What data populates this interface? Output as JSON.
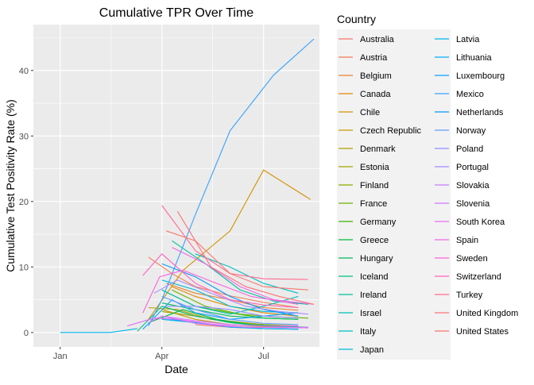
{
  "chart_data": {
    "type": "line",
    "title": "Cumulative TPR Over Time",
    "xlabel": "Date",
    "ylabel": "Cumulative Test Positivity Rate (%)",
    "x_ticks": [
      "Jan",
      "Apr",
      "Jul"
    ],
    "x_tick_dates": [
      "2020-01-01",
      "2020-04-01",
      "2020-07-01"
    ],
    "xlim": [
      "2019-12-08",
      "2020-08-20"
    ],
    "y_ticks": [
      0,
      10,
      20,
      30,
      40
    ],
    "ylim": [
      -2.2,
      47
    ],
    "grid": true,
    "legend": {
      "title": "Country",
      "position": "right",
      "columns": 2
    },
    "series": [
      {
        "name": "Australia",
        "color": "#F8766D",
        "points": [
          [
            "2020-05-01",
            1.2
          ],
          [
            "2020-06-01",
            0.8
          ],
          [
            "2020-07-01",
            0.6
          ],
          [
            "2020-08-01",
            0.5
          ]
        ]
      },
      {
        "name": "Austria",
        "color": "#F27D53",
        "points": [
          [
            "2020-03-20",
            11.5
          ],
          [
            "2020-04-10",
            9.0
          ],
          [
            "2020-05-01",
            7.0
          ],
          [
            "2020-06-01",
            5.6
          ],
          [
            "2020-07-01",
            4.6
          ],
          [
            "2020-08-01",
            3.8
          ]
        ]
      },
      {
        "name": "Belgium",
        "color": "#EA8331",
        "points": [
          [
            "2020-04-05",
            7.5
          ],
          [
            "2020-05-01",
            6.0
          ],
          [
            "2020-06-01",
            5.0
          ],
          [
            "2020-07-01",
            3.8
          ],
          [
            "2020-08-01",
            3.4
          ]
        ]
      },
      {
        "name": "Canada",
        "color": "#E38900",
        "points": [
          [
            "2020-04-10",
            7.0
          ],
          [
            "2020-05-01",
            5.5
          ],
          [
            "2020-06-01",
            4.0
          ],
          [
            "2020-07-01",
            3.0
          ],
          [
            "2020-08-01",
            2.5
          ]
        ]
      },
      {
        "name": "Chile",
        "color": "#D39200",
        "points": [
          [
            "2020-03-20",
            2.0
          ],
          [
            "2020-04-20",
            9.5
          ],
          [
            "2020-06-01",
            15.5
          ],
          [
            "2020-07-01",
            24.8
          ],
          [
            "2020-08-12",
            20.3
          ]
        ]
      },
      {
        "name": "Czech Republic",
        "color": "#C49A00",
        "points": [
          [
            "2020-04-01",
            3.5
          ],
          [
            "2020-05-01",
            2.0
          ],
          [
            "2020-06-01",
            1.2
          ],
          [
            "2020-07-01",
            0.9
          ],
          [
            "2020-08-01",
            0.8
          ]
        ]
      },
      {
        "name": "Denmark",
        "color": "#B3A000",
        "points": [
          [
            "2020-03-20",
            3.8
          ],
          [
            "2020-04-15",
            3.5
          ],
          [
            "2020-05-15",
            2.0
          ],
          [
            "2020-07-01",
            1.2
          ],
          [
            "2020-08-01",
            1.0
          ]
        ]
      },
      {
        "name": "Estonia",
        "color": "#A0A600",
        "points": [
          [
            "2020-04-01",
            3.2
          ],
          [
            "2020-05-01",
            2.5
          ],
          [
            "2020-06-01",
            1.6
          ],
          [
            "2020-07-01",
            1.2
          ]
        ]
      },
      {
        "name": "Finland",
        "color": "#89AC00",
        "points": [
          [
            "2020-04-01",
            4.0
          ],
          [
            "2020-05-01",
            2.5
          ],
          [
            "2020-06-01",
            1.6
          ],
          [
            "2020-07-01",
            1.0
          ],
          [
            "2020-08-01",
            0.8
          ]
        ]
      },
      {
        "name": "France",
        "color": "#6BB100",
        "points": [
          [
            "2020-04-10",
            6.5
          ],
          [
            "2020-05-10",
            4.0
          ],
          [
            "2020-06-10",
            2.8
          ],
          [
            "2020-07-10",
            2.4
          ],
          [
            "2020-08-10",
            2.2
          ]
        ]
      },
      {
        "name": "Germany",
        "color": "#39B600",
        "points": [
          [
            "2020-04-01",
            6.5
          ],
          [
            "2020-05-01",
            4.0
          ],
          [
            "2020-06-01",
            3.0
          ],
          [
            "2020-07-01",
            2.2
          ],
          [
            "2020-08-01",
            2.0
          ]
        ]
      },
      {
        "name": "Greece",
        "color": "#00BA38",
        "points": [
          [
            "2020-03-20",
            1.5
          ],
          [
            "2020-04-20",
            3.5
          ],
          [
            "2020-05-20",
            2.0
          ],
          [
            "2020-06-20",
            1.2
          ],
          [
            "2020-08-01",
            0.9
          ]
        ]
      },
      {
        "name": "Hungary",
        "color": "#00BD5C",
        "points": [
          [
            "2020-04-01",
            4.5
          ],
          [
            "2020-05-01",
            3.5
          ],
          [
            "2020-06-01",
            2.5
          ],
          [
            "2020-07-01",
            2.2
          ],
          [
            "2020-08-01",
            2.0
          ]
        ]
      },
      {
        "name": "Iceland",
        "color": "#00BF7D",
        "points": [
          [
            "2020-03-10",
            0.2
          ],
          [
            "2020-04-01",
            4.0
          ],
          [
            "2020-05-01",
            2.5
          ],
          [
            "2020-06-01",
            1.5
          ],
          [
            "2020-07-01",
            1.0
          ],
          [
            "2020-08-10",
            0.8
          ]
        ]
      },
      {
        "name": "Ireland",
        "color": "#00C19A",
        "points": [
          [
            "2020-04-10",
            14.0
          ],
          [
            "2020-05-10",
            10.5
          ],
          [
            "2020-06-10",
            6.5
          ],
          [
            "2020-07-10",
            4.8
          ],
          [
            "2020-08-10",
            4.3
          ]
        ]
      },
      {
        "name": "Israel",
        "color": "#00C0B4",
        "points": [
          [
            "2020-04-01",
            6.5
          ],
          [
            "2020-05-01",
            4.0
          ],
          [
            "2020-06-01",
            2.8
          ],
          [
            "2020-07-01",
            4.0
          ],
          [
            "2020-08-01",
            5.5
          ]
        ]
      },
      {
        "name": "Italy",
        "color": "#00BFC4",
        "points": [
          [
            "2020-05-01",
            12.0
          ],
          [
            "2020-06-01",
            10.0
          ],
          [
            "2020-07-01",
            7.5
          ],
          [
            "2020-08-01",
            6.0
          ]
        ]
      },
      {
        "name": "Japan",
        "color": "#00BCD8",
        "points": [
          [
            "2020-04-01",
            8.0
          ],
          [
            "2020-05-01",
            6.5
          ],
          [
            "2020-06-01",
            4.0
          ],
          [
            "2020-07-01",
            3.2
          ],
          [
            "2020-08-01",
            3.0
          ]
        ]
      },
      {
        "name": "Latvia",
        "color": "#00B6EB",
        "points": [
          [
            "2020-04-01",
            2.0
          ],
          [
            "2020-05-01",
            1.5
          ],
          [
            "2020-06-01",
            0.8
          ],
          [
            "2020-07-01",
            0.6
          ],
          [
            "2020-08-01",
            0.5
          ]
        ]
      },
      {
        "name": "Lithuania",
        "color": "#00AEF9",
        "points": [
          [
            "2020-04-01",
            2.2
          ],
          [
            "2020-05-01",
            1.5
          ],
          [
            "2020-06-01",
            0.9
          ],
          [
            "2020-07-01",
            0.6
          ],
          [
            "2020-08-01",
            0.5
          ]
        ]
      },
      {
        "name": "Luxembourg",
        "color": "#06A4FF",
        "points": [
          [
            "2020-03-15",
            0.5
          ],
          [
            "2020-04-10",
            5.0
          ],
          [
            "2020-05-01",
            3.0
          ],
          [
            "2020-06-01",
            2.0
          ],
          [
            "2020-07-01",
            2.5
          ],
          [
            "2020-08-01",
            3.0
          ]
        ]
      },
      {
        "name": "Mexico",
        "color": "#35A2FF",
        "points": [
          [
            "2020-03-20",
            1.0
          ],
          [
            "2020-04-01",
            5.0
          ],
          [
            "2020-05-01",
            18.0
          ],
          [
            "2020-06-01",
            30.8
          ],
          [
            "2020-07-10",
            39.3
          ],
          [
            "2020-08-15",
            44.8
          ]
        ]
      },
      {
        "name": "Netherlands",
        "color": "#0099F8",
        "points": [
          [
            "2020-04-01",
            10.5
          ],
          [
            "2020-05-01",
            8.5
          ],
          [
            "2020-06-01",
            5.5
          ],
          [
            "2020-07-01",
            3.5
          ],
          [
            "2020-08-01",
            2.5
          ]
        ]
      },
      {
        "name": "Norway",
        "color": "#619CFF",
        "points": [
          [
            "2020-04-01",
            5.5
          ],
          [
            "2020-05-01",
            3.5
          ],
          [
            "2020-06-01",
            2.0
          ],
          [
            "2020-07-01",
            1.4
          ],
          [
            "2020-08-01",
            1.2
          ]
        ]
      },
      {
        "name": "Poland",
        "color": "#9590FF",
        "points": [
          [
            "2020-04-05",
            4.0
          ],
          [
            "2020-05-01",
            4.0
          ],
          [
            "2020-06-01",
            3.5
          ],
          [
            "2020-07-01",
            2.5
          ],
          [
            "2020-08-01",
            2.2
          ]
        ]
      },
      {
        "name": "Portugal",
        "color": "#A58AFF",
        "points": [
          [
            "2020-03-25",
            6.0
          ],
          [
            "2020-04-15",
            8.0
          ],
          [
            "2020-05-15",
            6.0
          ],
          [
            "2020-06-15",
            4.0
          ],
          [
            "2020-07-15",
            3.2
          ],
          [
            "2020-08-10",
            2.8
          ]
        ]
      },
      {
        "name": "Slovakia",
        "color": "#C77CFF",
        "points": [
          [
            "2020-04-01",
            2.5
          ],
          [
            "2020-05-01",
            1.4
          ],
          [
            "2020-06-01",
            0.9
          ],
          [
            "2020-07-01",
            0.8
          ],
          [
            "2020-08-10",
            0.8
          ]
        ]
      },
      {
        "name": "Slovenia",
        "color": "#D575FE",
        "points": [
          [
            "2020-03-20",
            1.5
          ],
          [
            "2020-04-01",
            2.5
          ],
          [
            "2020-05-01",
            1.8
          ],
          [
            "2020-06-01",
            1.2
          ],
          [
            "2020-07-01",
            1.0
          ],
          [
            "2020-08-01",
            1.0
          ]
        ]
      },
      {
        "name": "South Korea",
        "color": "#E76BF3",
        "points": [
          [
            "2020-03-01",
            1.0
          ],
          [
            "2020-03-25",
            2.2
          ],
          [
            "2020-04-15",
            2.0
          ],
          [
            "2020-05-15",
            1.3
          ],
          [
            "2020-06-15",
            0.8
          ],
          [
            "2020-08-10",
            0.7
          ]
        ]
      },
      {
        "name": "Spain",
        "color": "#F166E7",
        "points": [
          [
            "2020-04-10",
            13.0
          ],
          [
            "2020-05-10",
            10.5
          ],
          [
            "2020-06-10",
            7.0
          ],
          [
            "2020-07-10",
            5.0
          ],
          [
            "2020-08-15",
            4.3
          ]
        ]
      },
      {
        "name": "Sweden",
        "color": "#FA62DB",
        "points": [
          [
            "2020-03-15",
            3.0
          ],
          [
            "2020-03-30",
            8.5
          ],
          [
            "2020-04-20",
            9.5
          ],
          [
            "2020-05-20",
            7.5
          ],
          [
            "2020-06-20",
            5.5
          ],
          [
            "2020-08-01",
            4.3
          ]
        ]
      },
      {
        "name": "Switzerland",
        "color": "#FF62BC",
        "points": [
          [
            "2020-03-15",
            8.7
          ],
          [
            "2020-04-01",
            12.0
          ],
          [
            "2020-05-01",
            7.5
          ],
          [
            "2020-06-01",
            5.0
          ],
          [
            "2020-07-01",
            4.2
          ],
          [
            "2020-08-01",
            3.8
          ]
        ]
      },
      {
        "name": "Turkey",
        "color": "#FF6C91",
        "points": [
          [
            "2020-04-01",
            19.4
          ],
          [
            "2020-05-01",
            12.5
          ],
          [
            "2020-06-01",
            9.0
          ],
          [
            "2020-07-01",
            8.2
          ],
          [
            "2020-08-10",
            8.1
          ]
        ]
      },
      {
        "name": "United Kingdom",
        "color": "#FB737A",
        "points": [
          [
            "2020-04-15",
            18.5
          ],
          [
            "2020-05-15",
            10.0
          ],
          [
            "2020-06-15",
            7.0
          ],
          [
            "2020-07-15",
            5.5
          ],
          [
            "2020-08-15",
            4.3
          ]
        ]
      },
      {
        "name": "United States",
        "color": "#F8766D",
        "points": [
          [
            "2020-04-05",
            15.5
          ],
          [
            "2020-05-01",
            14.0
          ],
          [
            "2020-06-01",
            9.0
          ],
          [
            "2020-07-01",
            7.0
          ],
          [
            "2020-08-10",
            6.5
          ]
        ]
      }
    ]
  }
}
